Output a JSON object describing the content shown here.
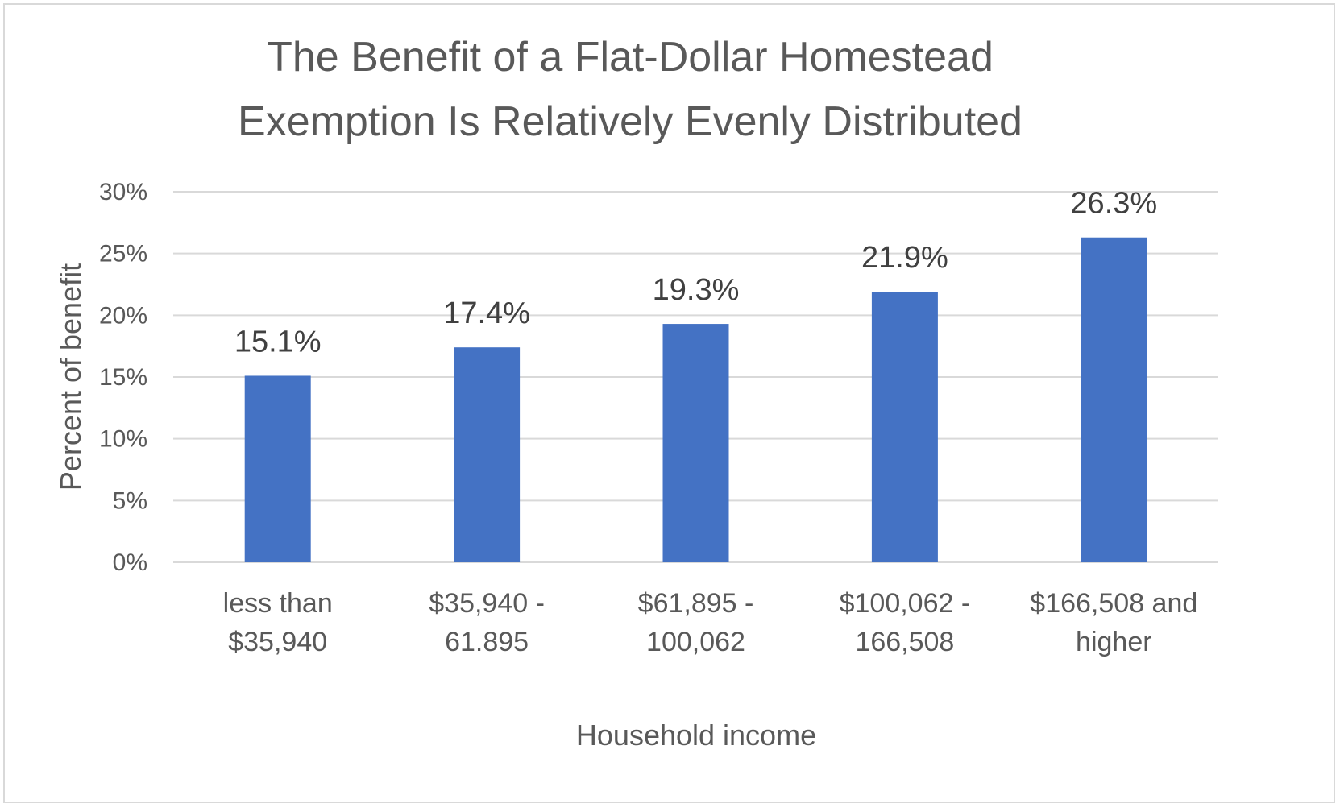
{
  "chart_data": {
    "type": "bar",
    "title_lines": [
      "The Benefit of a Flat-Dollar Homestead",
      "Exemption Is Relatively Evenly Distributed"
    ],
    "xlabel": "Household income",
    "ylabel": "Percent of benefit",
    "categories": [
      [
        "less than",
        "$35,940"
      ],
      [
        "$35,940 -",
        "61.895"
      ],
      [
        "$61,895 -",
        "100,062"
      ],
      [
        "$100,062 -",
        "166,508"
      ],
      [
        "$166,508 and",
        "higher"
      ]
    ],
    "values": [
      15.1,
      17.4,
      19.3,
      21.9,
      26.3
    ],
    "data_labels": [
      "15.1%",
      "17.4%",
      "19.3%",
      "21.9%",
      "26.3%"
    ],
    "ylim": [
      0,
      30
    ],
    "yticks": [
      0,
      5,
      10,
      15,
      20,
      25,
      30
    ],
    "ytick_labels": [
      "0%",
      "5%",
      "10%",
      "15%",
      "20%",
      "25%",
      "30%"
    ],
    "grid": true,
    "legend": "none",
    "bar_color": "#4472c4",
    "grid_color": "#d9d9d9"
  }
}
